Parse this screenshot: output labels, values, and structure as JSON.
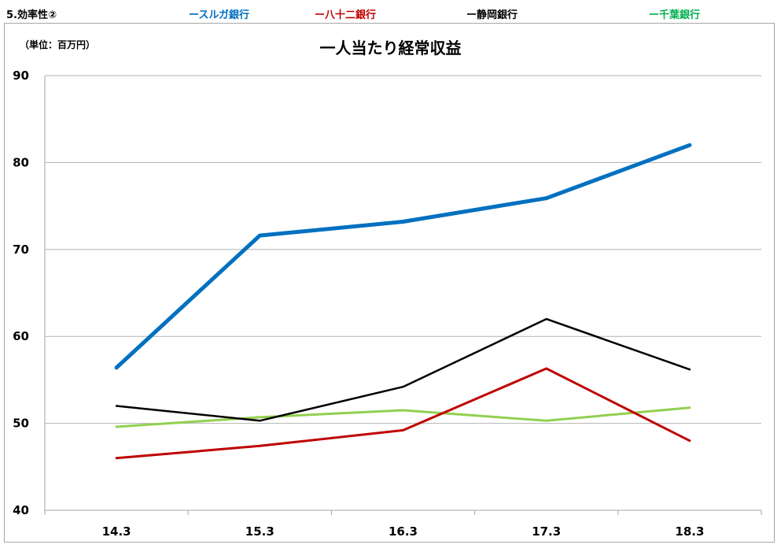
{
  "section_label": "5.効率性②",
  "chart_data": {
    "type": "line",
    "title": "一人当たり経常収益",
    "unit_label": "（単位：百万円）",
    "categories": [
      "14.3",
      "15.3",
      "16.3",
      "17.3",
      "18.3"
    ],
    "ylim": [
      40,
      90
    ],
    "yticks": [
      40,
      50,
      60,
      70,
      80,
      90
    ],
    "grid": true,
    "legend_position": "top",
    "series": [
      {
        "name": "ースルガ銀行",
        "color": "#0070c0",
        "values": [
          56.4,
          71.6,
          73.2,
          75.9,
          82.0
        ]
      },
      {
        "name": "ー八十二銀行",
        "color": "#c00000",
        "values": [
          46.0,
          47.4,
          49.2,
          56.3,
          48.0
        ]
      },
      {
        "name": "ー静岡銀行",
        "color": "#000000",
        "values": [
          52.0,
          50.3,
          54.2,
          62.0,
          56.2
        ]
      },
      {
        "name": "ー千葉銀行",
        "color": "#00b050",
        "line_color": "#92d050",
        "values": [
          49.6,
          50.7,
          51.5,
          50.3,
          51.8
        ]
      }
    ]
  }
}
